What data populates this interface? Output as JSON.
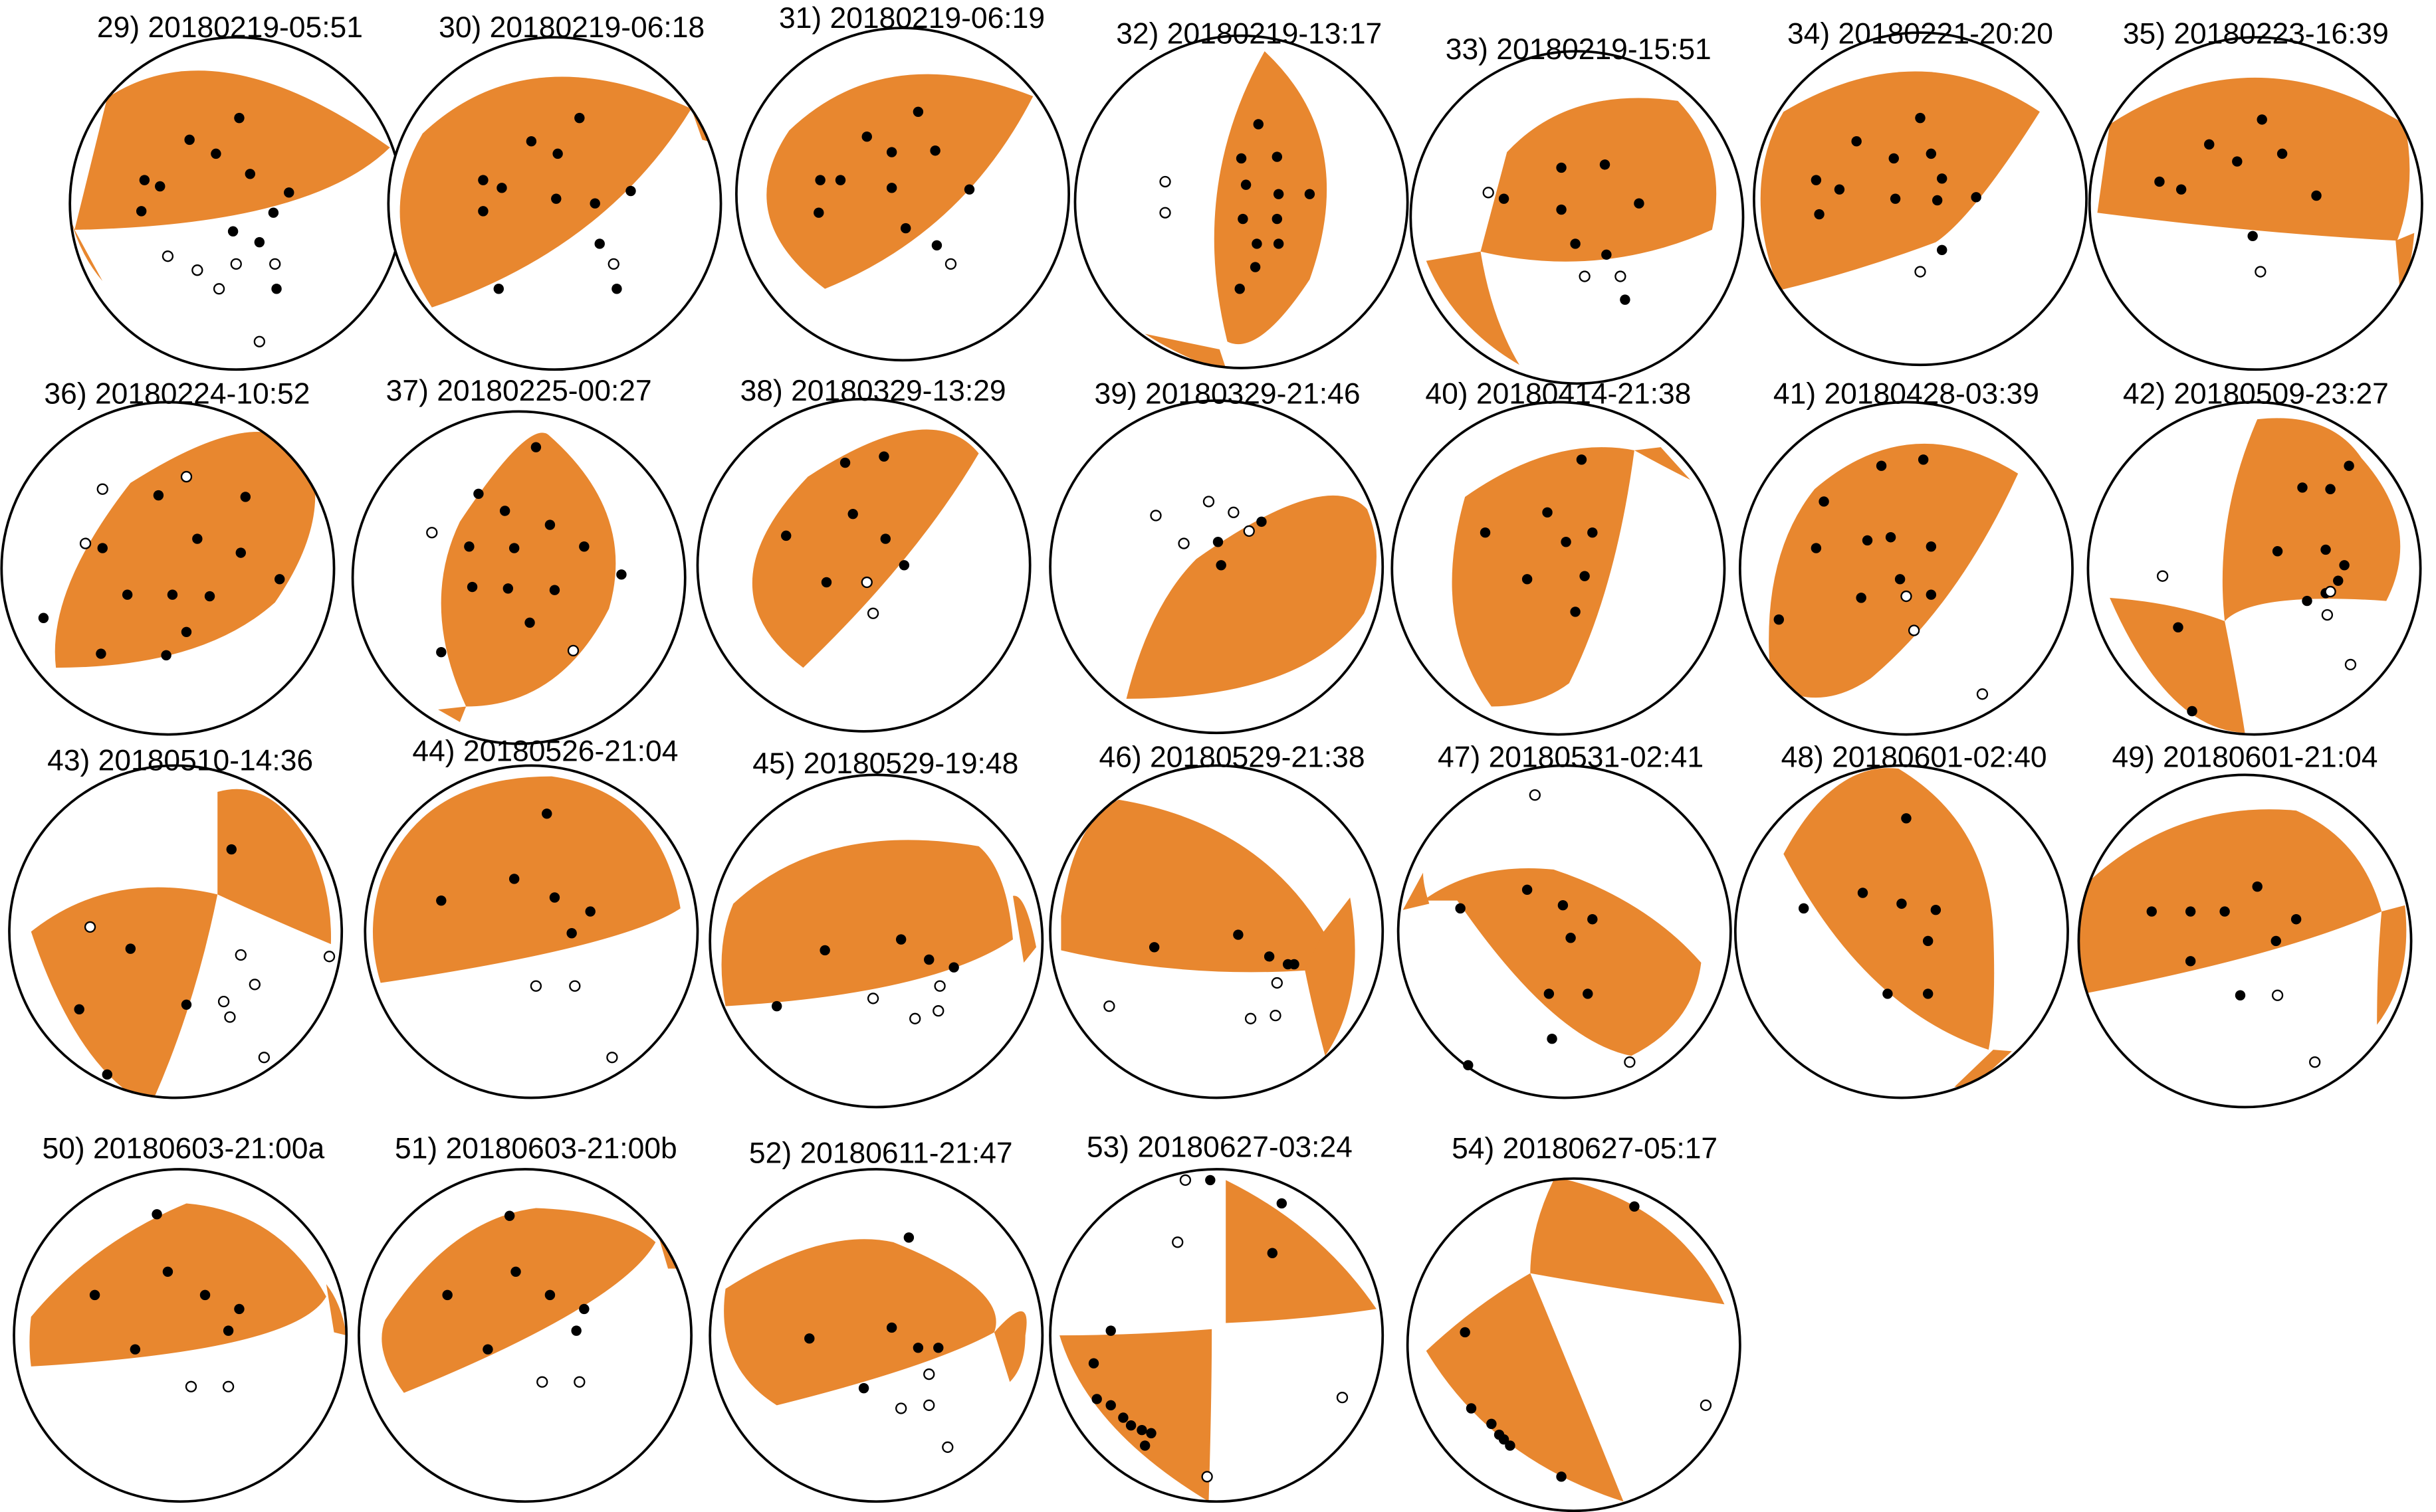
{
  "colors": {
    "compression_fill": "#E8872F",
    "outline": "#000000",
    "dilatation_fill": "#ffffff",
    "compression_dot": "#000000"
  },
  "figure_type": "focal-mechanism-beachballs",
  "events": [
    {
      "label": "29) 20180219-05:51"
    },
    {
      "label": "30) 20180219-06:18"
    },
    {
      "label": "31) 20180219-06:19"
    },
    {
      "label": "32) 20180219-13:17"
    },
    {
      "label": "33) 20180219-15:51"
    },
    {
      "label": "34) 20180221-20:20"
    },
    {
      "label": "35) 20180223-16:39"
    },
    {
      "label": "36) 20180224-10:52"
    },
    {
      "label": "37) 20180225-00:27"
    },
    {
      "label": "38) 20180329-13:29"
    },
    {
      "label": "39) 20180329-21:46"
    },
    {
      "label": "40) 20180414-21:38"
    },
    {
      "label": "41) 20180428-03:39"
    },
    {
      "label": "42) 20180509-23:27"
    },
    {
      "label": "43) 20180510-14:36"
    },
    {
      "label": "44) 20180526-21:04"
    },
    {
      "label": "45) 20180529-19:48"
    },
    {
      "label": "46) 20180529-21:38"
    },
    {
      "label": "47) 20180531-02:41"
    },
    {
      "label": "48) 20180601-02:40"
    },
    {
      "label": "49) 20180601-21:04"
    },
    {
      "label": "50) 20180603-21:00a"
    },
    {
      "label": "51) 20180603-21:00b"
    },
    {
      "label": "52) 20180611-21:47"
    },
    {
      "label": "53) 20180627-03:24"
    },
    {
      "label": "54) 20180627-05:17"
    }
  ]
}
